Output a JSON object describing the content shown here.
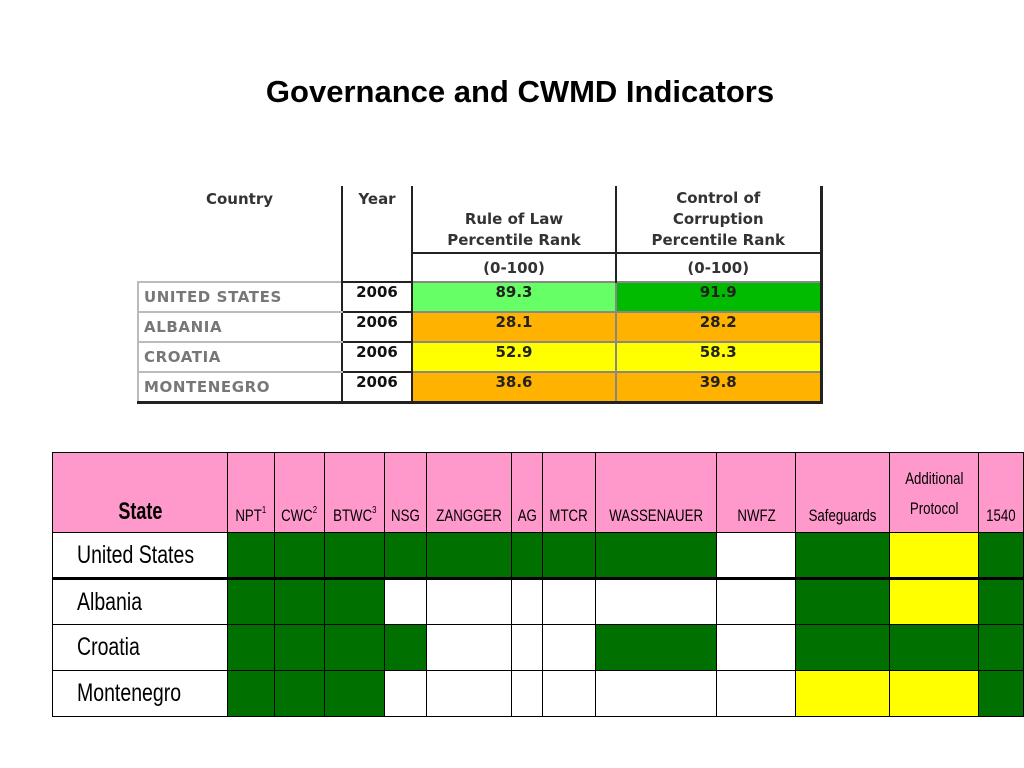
{
  "title": "Governance and CWMD Indicators",
  "governance_table": {
    "headers": {
      "country": "Country",
      "year": "Year",
      "rule_of_law": [
        "Rule of Law",
        "Percentile Rank"
      ],
      "control_of_corruption": [
        "Control of",
        "Corruption",
        "Percentile Rank"
      ],
      "range": "(0-100)"
    },
    "rows": [
      {
        "country": "UNITED STATES",
        "year": "2006",
        "rule_of_law": "89.3",
        "control_of_corruption": "91.9",
        "rol_color": "#66ff66",
        "coc_color": "#00bb00"
      },
      {
        "country": "ALBANIA",
        "year": "2006",
        "rule_of_law": "28.1",
        "control_of_corruption": "28.2",
        "rol_color": "#ffb300",
        "coc_color": "#ffb300"
      },
      {
        "country": "CROATIA",
        "year": "2006",
        "rule_of_law": "52.9",
        "control_of_corruption": "58.3",
        "rol_color": "#ffff00",
        "coc_color": "#ffff00"
      },
      {
        "country": "MONTENEGRO",
        "year": "2006",
        "rule_of_law": "38.6",
        "control_of_corruption": "39.8",
        "rol_color": "#ffb300",
        "coc_color": "#ffb300"
      }
    ]
  },
  "cwmd_table": {
    "state_header": "State",
    "columns": [
      {
        "label": "NPT",
        "sup": "1"
      },
      {
        "label": "CWC",
        "sup": "2"
      },
      {
        "label": "BTWC",
        "sup": "3"
      },
      {
        "label": "NSG",
        "sup": ""
      },
      {
        "label": "ZANGGER",
        "sup": ""
      },
      {
        "label": "AG",
        "sup": ""
      },
      {
        "label": "MTCR",
        "sup": ""
      },
      {
        "label": "WASSENAUER",
        "sup": ""
      },
      {
        "label": "NWFZ",
        "sup": ""
      },
      {
        "label": "Safeguards",
        "sup": ""
      },
      {
        "label": "Additional Protocol",
        "sup": ""
      },
      {
        "label": "1540",
        "sup": ""
      }
    ],
    "legend_colors": {
      "G": "#007000",
      "W": "#ffffff",
      "Y": "#ffff00"
    },
    "rows": [
      {
        "state": "United States",
        "cells": [
          "G",
          "G",
          "G",
          "G",
          "G",
          "G",
          "G",
          "G",
          "W",
          "G",
          "Y",
          "G"
        ]
      },
      {
        "state": "Albania",
        "cells": [
          "G",
          "G",
          "G",
          "W",
          "W",
          "W",
          "W",
          "W",
          "W",
          "G",
          "Y",
          "G"
        ]
      },
      {
        "state": "Croatia",
        "cells": [
          "G",
          "G",
          "G",
          "G",
          "W",
          "W",
          "W",
          "G",
          "W",
          "G",
          "G",
          "G"
        ]
      },
      {
        "state": "Montenegro",
        "cells": [
          "G",
          "G",
          "G",
          "W",
          "W",
          "W",
          "W",
          "W",
          "W",
          "Y",
          "Y",
          "G"
        ]
      }
    ]
  }
}
